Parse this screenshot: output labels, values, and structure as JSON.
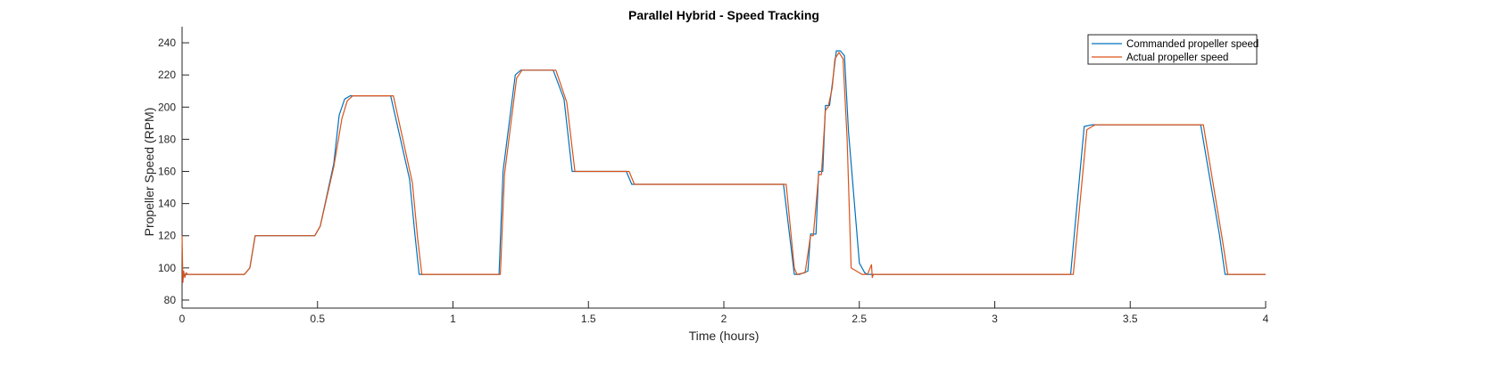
{
  "chart_data": {
    "type": "line",
    "title": "Parallel Hybrid - Speed Tracking",
    "xlabel": "Time (hours)",
    "ylabel": "Propeller Speed (RPM)",
    "xlim": [
      0,
      4
    ],
    "ylim": [
      75,
      250
    ],
    "xticks": [
      0,
      0.5,
      1,
      1.5,
      2,
      2.5,
      3,
      3.5,
      4
    ],
    "xtick_labels": [
      "0",
      "0.5",
      "1",
      "1.5",
      "2",
      "2.5",
      "3",
      "3.5",
      "4"
    ],
    "yticks": [
      80,
      100,
      120,
      140,
      160,
      180,
      200,
      220,
      240
    ],
    "ytick_labels": [
      "80",
      "100",
      "120",
      "140",
      "160",
      "180",
      "200",
      "220",
      "240"
    ],
    "grid": false,
    "legend_position": "top-right",
    "series": [
      {
        "name": "Commanded propeller speed",
        "color": "#0072BD",
        "x": [
          0,
          0.23,
          0.25,
          0.27,
          0.49,
          0.51,
          0.56,
          0.58,
          0.6,
          0.62,
          0.77,
          0.84,
          0.86,
          0.875,
          1.17,
          1.185,
          1.23,
          1.25,
          1.37,
          1.41,
          1.44,
          1.64,
          1.66,
          2.22,
          2.26,
          2.27,
          2.28,
          2.31,
          2.32,
          2.34,
          2.35,
          2.365,
          2.375,
          2.39,
          2.4,
          2.415,
          2.43,
          2.445,
          2.46,
          2.5,
          2.52,
          2.53,
          2.55,
          3.28,
          3.33,
          3.36,
          3.76,
          3.83,
          3.85,
          4.0
        ],
        "y": [
          96,
          96,
          100,
          120,
          120,
          126,
          165,
          195,
          205,
          207,
          207,
          155,
          120,
          96,
          96,
          160,
          220,
          223,
          223,
          205,
          160,
          160,
          152,
          152,
          96,
          96,
          96,
          98,
          121,
          121,
          160,
          160,
          201,
          201,
          214,
          235,
          235,
          232,
          185,
          103,
          97,
          96,
          96,
          96,
          188,
          189,
          189,
          120,
          96,
          96
        ]
      },
      {
        "name": "Actual propeller speed",
        "color": "#D95319",
        "x": [
          0,
          0.003,
          0.006,
          0.01,
          0.015,
          0.02,
          0.03,
          0.23,
          0.25,
          0.27,
          0.49,
          0.51,
          0.56,
          0.59,
          0.61,
          0.63,
          0.78,
          0.85,
          0.87,
          0.885,
          1.175,
          1.19,
          1.235,
          1.255,
          1.38,
          1.42,
          1.45,
          1.65,
          1.67,
          2.23,
          2.26,
          2.27,
          2.3,
          2.32,
          2.33,
          2.35,
          2.36,
          2.375,
          2.385,
          2.4,
          2.41,
          2.425,
          2.44,
          2.455,
          2.47,
          2.51,
          2.53,
          2.545,
          2.548,
          2.552,
          2.56,
          3.29,
          3.34,
          3.37,
          3.77,
          3.84,
          3.86,
          4.0
        ],
        "y": [
          120,
          91,
          98,
          94,
          97,
          96,
          96,
          96,
          100,
          120,
          120,
          126,
          163,
          193,
          204,
          207,
          207,
          153,
          118,
          96,
          96,
          158,
          218,
          223,
          223,
          203,
          160,
          160,
          152,
          152,
          100,
          96,
          97,
          120,
          120,
          158,
          158,
          198,
          200,
          212,
          230,
          234,
          230,
          180,
          100,
          96,
          96,
          102,
          94,
          96,
          96,
          96,
          186,
          189,
          189,
          118,
          96,
          96
        ]
      }
    ]
  }
}
